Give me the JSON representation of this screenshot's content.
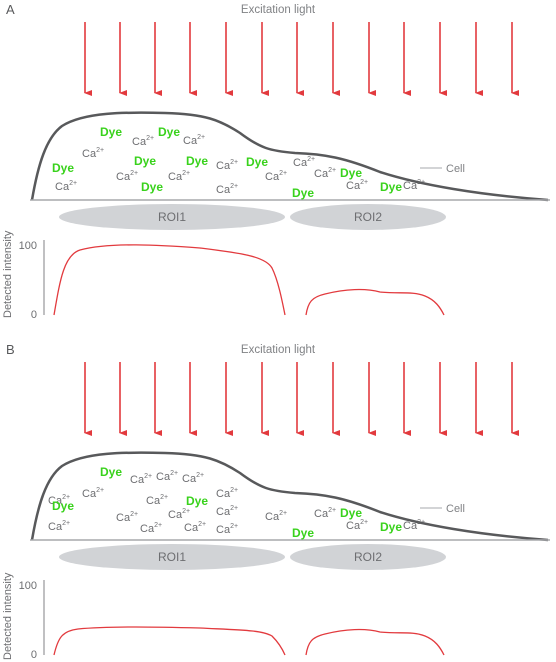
{
  "panels": [
    {
      "letter": "A",
      "excitation_label": "Excitation light",
      "cell_label": "Cell",
      "roi1_label": "ROI1",
      "roi2_label": "ROI2",
      "y_axis_label": "Detected intensity",
      "y_tick_max": "100",
      "y_tick_min": "0",
      "molecules": [
        {
          "type": "dye",
          "text": "Dye"
        },
        {
          "type": "dye",
          "text": "Dye"
        },
        {
          "type": "ca",
          "text": "Ca",
          "sup": "2+"
        },
        {
          "type": "ca",
          "text": "Ca",
          "sup": "2+"
        },
        {
          "type": "ca",
          "text": "Ca",
          "sup": "2+"
        },
        {
          "type": "dye",
          "text": "Dye"
        },
        {
          "type": "dye",
          "text": "Dye"
        },
        {
          "type": "dye",
          "text": "Dye"
        },
        {
          "type": "ca",
          "text": "Ca",
          "sup": "2+"
        },
        {
          "type": "ca",
          "text": "Ca",
          "sup": "2+"
        },
        {
          "type": "dye",
          "text": "Dye"
        },
        {
          "type": "ca",
          "text": "Ca",
          "sup": "2+"
        },
        {
          "type": "ca",
          "text": "Ca",
          "sup": "2+"
        },
        {
          "type": "ca",
          "text": "Ca",
          "sup": "2+"
        },
        {
          "type": "dye",
          "text": "Dye"
        },
        {
          "type": "ca",
          "text": "Ca",
          "sup": "2+"
        },
        {
          "type": "ca",
          "text": "Ca",
          "sup": "2+"
        },
        {
          "type": "ca",
          "text": "Ca",
          "sup": "2+"
        },
        {
          "type": "dye",
          "text": "Dye"
        },
        {
          "type": "dye",
          "text": "Dye"
        },
        {
          "type": "ca",
          "text": "Ca",
          "sup": "2+"
        },
        {
          "type": "dye",
          "text": "Dye"
        },
        {
          "type": "ca",
          "text": "Ca",
          "sup": "2+"
        }
      ]
    },
    {
      "letter": "B",
      "excitation_label": "Excitation light",
      "cell_label": "Cell",
      "roi1_label": "ROI1",
      "roi2_label": "ROI2",
      "y_axis_label": "Detected intensity",
      "y_tick_max": "100",
      "y_tick_min": "0",
      "molecules": [
        {
          "type": "dye",
          "text": "Dye"
        },
        {
          "type": "ca",
          "text": "Ca",
          "sup": "2+"
        },
        {
          "type": "ca",
          "text": "Ca",
          "sup": "2+"
        },
        {
          "type": "ca",
          "text": "Ca",
          "sup": "2+"
        },
        {
          "type": "ca",
          "text": "Ca",
          "sup": "2+"
        },
        {
          "type": "ca",
          "text": "Ca",
          "sup": "2+"
        },
        {
          "type": "ca",
          "text": "Ca",
          "sup": "2+"
        },
        {
          "type": "dye",
          "text": "Dye"
        },
        {
          "type": "ca",
          "text": "Ca",
          "sup": "2+"
        },
        {
          "type": "dye",
          "text": "Dye"
        },
        {
          "type": "ca",
          "text": "Ca",
          "sup": "2+"
        },
        {
          "type": "ca",
          "text": "Ca",
          "sup": "2+"
        },
        {
          "type": "ca",
          "text": "Ca",
          "sup": "2+"
        },
        {
          "type": "ca",
          "text": "Ca",
          "sup": "2+"
        },
        {
          "type": "ca",
          "text": "Ca",
          "sup": "2+"
        },
        {
          "type": "ca",
          "text": "Ca",
          "sup": "2+"
        },
        {
          "type": "ca",
          "text": "Ca",
          "sup": "2+"
        },
        {
          "type": "ca",
          "text": "Ca",
          "sup": "2+"
        },
        {
          "type": "ca",
          "text": "Ca",
          "sup": "2+"
        },
        {
          "type": "dye",
          "text": "Dye"
        },
        {
          "type": "dye",
          "text": "Dye"
        },
        {
          "type": "ca",
          "text": "Ca",
          "sup": "2+"
        },
        {
          "type": "dye",
          "text": "Dye"
        },
        {
          "type": "ca",
          "text": "Ca",
          "sup": "2+"
        }
      ]
    }
  ],
  "colors": {
    "arrow": "#e23a3e",
    "cell_outline": "#58595b",
    "roi_fill": "#d1d3d6",
    "dye_text": "#39d21c",
    "ca_text": "#6d6e71",
    "intensity_curve": "#e23a3e"
  }
}
